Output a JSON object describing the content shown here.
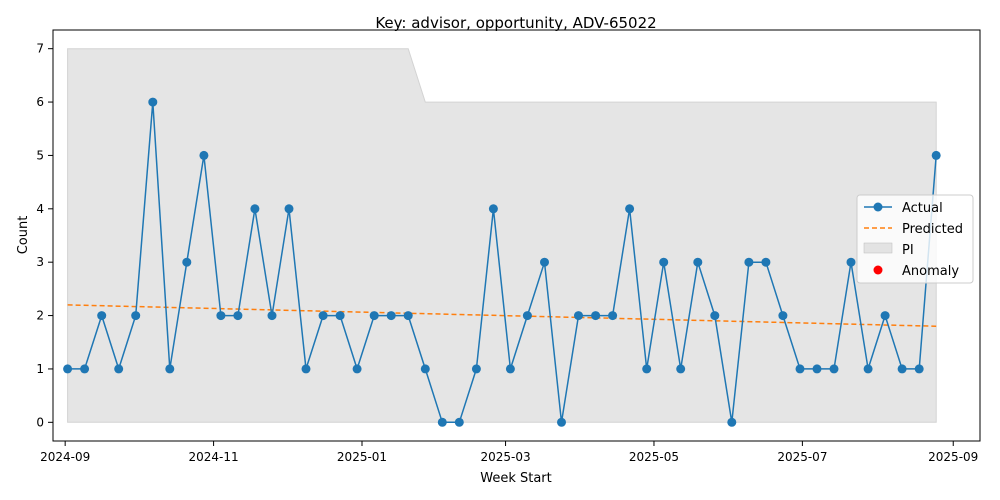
{
  "chart_data": {
    "type": "line",
    "title": "Key: advisor, opportunity, ADV-65022",
    "xlabel": "Week Start",
    "ylabel": "Count",
    "ylim": [
      -0.35,
      7.35
    ],
    "xlim": [
      "2024-08-27",
      "2025-09-12"
    ],
    "x_ticks": [
      "2024-09",
      "2024-11",
      "2025-01",
      "2025-03",
      "2025-05",
      "2025-07",
      "2025-09"
    ],
    "y_ticks": [
      0,
      1,
      2,
      3,
      4,
      5,
      6,
      7
    ],
    "grid": false,
    "legend": {
      "position": "center-right"
    },
    "x": [
      "2024-09-02",
      "2024-09-09",
      "2024-09-16",
      "2024-09-23",
      "2024-09-30",
      "2024-10-07",
      "2024-10-14",
      "2024-10-21",
      "2024-10-28",
      "2024-11-04",
      "2024-11-11",
      "2024-11-18",
      "2024-11-25",
      "2024-12-02",
      "2024-12-09",
      "2024-12-16",
      "2024-12-23",
      "2024-12-30",
      "2025-01-06",
      "2025-01-13",
      "2025-01-20",
      "2025-01-27",
      "2025-02-03",
      "2025-02-10",
      "2025-02-17",
      "2025-02-24",
      "2025-03-03",
      "2025-03-10",
      "2025-03-17",
      "2025-03-24",
      "2025-03-31",
      "2025-04-07",
      "2025-04-14",
      "2025-04-21",
      "2025-04-28",
      "2025-05-05",
      "2025-05-12",
      "2025-05-19",
      "2025-05-26",
      "2025-06-02",
      "2025-06-09",
      "2025-06-16",
      "2025-06-23",
      "2025-06-30",
      "2025-07-07",
      "2025-07-14",
      "2025-07-21",
      "2025-07-28",
      "2025-08-04",
      "2025-08-11",
      "2025-08-18",
      "2025-08-25"
    ],
    "series": [
      {
        "name": "Actual",
        "color": "#1f77b4",
        "style": "line-markers",
        "values": [
          1,
          1,
          2,
          1,
          2,
          6,
          1,
          3,
          5,
          2,
          2,
          4,
          2,
          4,
          1,
          2,
          2,
          1,
          2,
          2,
          2,
          1,
          0,
          0,
          1,
          4,
          1,
          2,
          3,
          0,
          2,
          2,
          2,
          4,
          1,
          3,
          1,
          3,
          2,
          0,
          3,
          3,
          2,
          1,
          1,
          1,
          3,
          1,
          2,
          1,
          1,
          5
        ]
      },
      {
        "name": "Predicted",
        "color": "#ff7f0e",
        "style": "dashed",
        "start": 2.2,
        "end": 1.8
      },
      {
        "name": "PI",
        "color": "#d3d3d3",
        "style": "band",
        "lower": [
          0,
          0,
          0,
          0,
          0,
          0,
          0,
          0,
          0,
          0,
          0,
          0,
          0,
          0,
          0,
          0,
          0,
          0,
          0,
          0,
          0,
          0,
          0,
          0,
          0,
          0,
          0,
          0,
          0,
          0,
          0,
          0,
          0,
          0,
          0,
          0,
          0,
          0,
          0,
          0,
          0,
          0,
          0,
          0,
          0,
          0,
          0,
          0,
          0,
          0,
          0,
          0
        ],
        "upper": [
          7,
          7,
          7,
          7,
          7,
          7,
          7,
          7,
          7,
          7,
          7,
          7,
          7,
          7,
          7,
          7,
          7,
          7,
          7,
          7,
          7,
          6,
          6,
          6,
          6,
          6,
          6,
          6,
          6,
          6,
          6,
          6,
          6,
          6,
          6,
          6,
          6,
          6,
          6,
          6,
          6,
          6,
          6,
          6,
          6,
          6,
          6,
          6,
          6,
          6,
          6,
          6
        ]
      },
      {
        "name": "Anomaly",
        "color": "#ff0000",
        "style": "points",
        "x": [],
        "values": []
      }
    ]
  }
}
